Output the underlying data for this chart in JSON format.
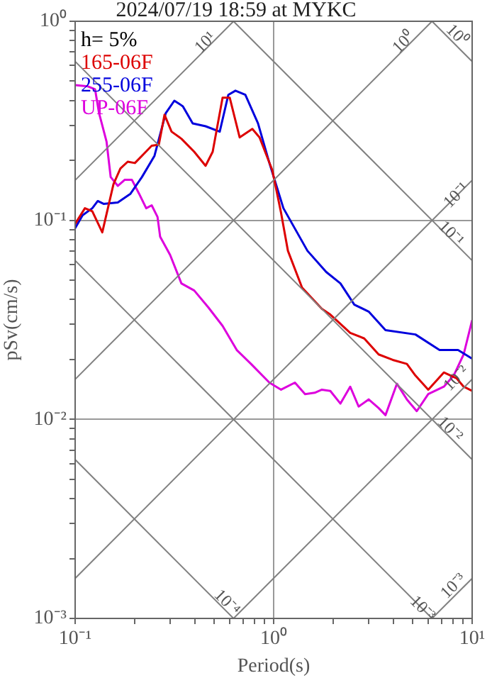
{
  "chart_data": {
    "type": "line",
    "title": "2024/07/19 18:59 at MYKC",
    "xlabel": "Period(s)",
    "ylabel": "pSv(cm/s)",
    "log": "xy",
    "grid": true,
    "legend": "top left",
    "xlim": [
      0.1,
      10
    ],
    "ylim": [
      0.001,
      1
    ],
    "xticks": [
      {
        "value": 0.1,
        "label": "10⁻¹"
      },
      {
        "value": 0.2,
        "label": null
      },
      {
        "value": 0.3,
        "label": null
      },
      {
        "value": 0.4,
        "label": null
      },
      {
        "value": 0.5,
        "label": null
      },
      {
        "value": 0.6,
        "label": null
      },
      {
        "value": 0.7,
        "label": null
      },
      {
        "value": 0.8,
        "label": null
      },
      {
        "value": 0.9,
        "label": null
      },
      {
        "value": 1,
        "label": "10⁰"
      },
      {
        "value": 2,
        "label": null
      },
      {
        "value": 3,
        "label": null
      },
      {
        "value": 4,
        "label": null
      },
      {
        "value": 5,
        "label": null
      },
      {
        "value": 6,
        "label": null
      },
      {
        "value": 7,
        "label": null
      },
      {
        "value": 8,
        "label": null
      },
      {
        "value": 9,
        "label": null
      },
      {
        "value": 10,
        "label": "10¹"
      }
    ],
    "yticks": [
      {
        "value": 0.001,
        "label": "10⁻³"
      },
      {
        "value": 0.002,
        "label": null
      },
      {
        "value": 0.003,
        "label": null
      },
      {
        "value": 0.004,
        "label": null
      },
      {
        "value": 0.005,
        "label": null
      },
      {
        "value": 0.006,
        "label": null
      },
      {
        "value": 0.007,
        "label": null
      },
      {
        "value": 0.008,
        "label": null
      },
      {
        "value": 0.009,
        "label": null
      },
      {
        "value": 0.01,
        "label": "10⁻²"
      },
      {
        "value": 0.02,
        "label": null
      },
      {
        "value": 0.03,
        "label": null
      },
      {
        "value": 0.04,
        "label": null
      },
      {
        "value": 0.05,
        "label": null
      },
      {
        "value": 0.06,
        "label": null
      },
      {
        "value": 0.07,
        "label": null
      },
      {
        "value": 0.08,
        "label": null
      },
      {
        "value": 0.09,
        "label": null
      },
      {
        "value": 0.1,
        "label": "10⁻¹"
      },
      {
        "value": 0.2,
        "label": null
      },
      {
        "value": 0.3,
        "label": null
      },
      {
        "value": 0.4,
        "label": null
      },
      {
        "value": 0.5,
        "label": null
      },
      {
        "value": 0.6,
        "label": null
      },
      {
        "value": 0.7,
        "label": null
      },
      {
        "value": 0.8,
        "label": null
      },
      {
        "value": 0.9,
        "label": null
      },
      {
        "value": 1,
        "label": "10⁰"
      }
    ],
    "series": [
      {
        "type": "line",
        "color": "#808080",
        "x": [
          0.1,
          0.628
        ],
        "values": [
          0.159,
          1
        ]
      },
      {
        "type": "line",
        "color": "#808080",
        "x": [
          0.1,
          6.28
        ],
        "values": [
          0.0159,
          1
        ]
      },
      {
        "type": "line",
        "color": "#808080",
        "x": [
          0.1,
          10
        ],
        "values": [
          0.00159,
          0.159
        ]
      },
      {
        "type": "line",
        "color": "#808080",
        "x": [
          0.628,
          10
        ],
        "values": [
          0.001,
          0.0159
        ]
      },
      {
        "type": "line",
        "color": "#808080",
        "x": [
          6.28,
          10
        ],
        "values": [
          0.001,
          0.00159
        ]
      },
      {
        "type": "line",
        "color": "#808080",
        "x": [
          6.28,
          10
        ],
        "values": [
          1,
          0.628
        ]
      },
      {
        "type": "line",
        "color": "#808080",
        "x": [
          0.628,
          10
        ],
        "values": [
          1,
          0.0628
        ]
      },
      {
        "type": "line",
        "color": "#808080",
        "x": [
          0.1,
          10
        ],
        "values": [
          0.628,
          0.00628
        ]
      },
      {
        "type": "line",
        "color": "#808080",
        "x": [
          0.1,
          6.28
        ],
        "values": [
          0.0628,
          0.001
        ]
      },
      {
        "type": "line",
        "color": "#808080",
        "x": [
          0.1,
          0.628
        ],
        "values": [
          0.00628,
          0.001
        ]
      },
      {
        "type": "line",
        "name": "165-06F",
        "color": "#dd0000",
        "x": [
          0.1,
          0.112,
          0.122,
          0.137,
          0.156,
          0.169,
          0.184,
          0.2,
          0.224,
          0.243,
          0.264,
          0.282,
          0.306,
          0.343,
          0.398,
          0.454,
          0.493,
          0.553,
          0.601,
          0.674,
          0.781,
          0.849,
          0.984,
          1.09,
          1.18,
          1.39,
          1.75,
          1.93,
          2.43,
          2.86,
          3.38,
          3.98,
          4.69,
          5.18,
          6.01,
          7.2,
          8.34,
          9.06,
          10
        ],
        "values": [
          0.096,
          0.115,
          0.111,
          0.087,
          0.152,
          0.182,
          0.197,
          0.194,
          0.218,
          0.237,
          0.24,
          0.339,
          0.279,
          0.257,
          0.221,
          0.188,
          0.221,
          0.413,
          0.413,
          0.261,
          0.288,
          0.261,
          0.179,
          0.109,
          0.0703,
          0.0459,
          0.0359,
          0.0336,
          0.0272,
          0.0255,
          0.0212,
          0.0199,
          0.019,
          0.0166,
          0.0141,
          0.0172,
          0.0161,
          0.0146,
          0.0139
        ]
      },
      {
        "type": "line",
        "name": "255-06F",
        "color": "#0000dd",
        "x": [
          0.1,
          0.109,
          0.122,
          0.13,
          0.139,
          0.164,
          0.19,
          0.217,
          0.251,
          0.286,
          0.316,
          0.349,
          0.391,
          0.454,
          0.535,
          0.591,
          0.642,
          0.72,
          0.834,
          0.952,
          1.12,
          1.48,
          1.84,
          2.17,
          2.55,
          3.01,
          3.66,
          5.18,
          6.85,
          8.49,
          10
        ],
        "values": [
          0.0914,
          0.106,
          0.115,
          0.125,
          0.121,
          0.123,
          0.136,
          0.165,
          0.211,
          0.345,
          0.399,
          0.374,
          0.307,
          0.297,
          0.279,
          0.427,
          0.448,
          0.427,
          0.307,
          0.194,
          0.115,
          0.0703,
          0.055,
          0.0482,
          0.0377,
          0.0348,
          0.0281,
          0.0267,
          0.0223,
          0.0223,
          0.0202
        ]
      },
      {
        "type": "line",
        "name": "UP-06F",
        "color": "#dd00dd",
        "x": [
          0.1,
          0.116,
          0.126,
          0.132,
          0.144,
          0.151,
          0.164,
          0.178,
          0.193,
          0.21,
          0.228,
          0.243,
          0.26,
          0.268,
          0.301,
          0.343,
          0.398,
          0.469,
          0.553,
          0.652,
          0.769,
          0.952,
          1.09,
          1.28,
          1.44,
          1.61,
          1.75,
          1.93,
          2.17,
          2.43,
          2.68,
          3.01,
          3.38,
          3.66,
          4.18,
          4.69,
          5.26,
          6.01,
          7.2,
          8.07,
          9.06,
          10
        ],
        "values": [
          0.478,
          0.471,
          0.455,
          0.345,
          0.248,
          0.165,
          0.149,
          0.16,
          0.16,
          0.136,
          0.115,
          0.119,
          0.104,
          0.0828,
          0.067,
          0.0482,
          0.0444,
          0.0365,
          0.0295,
          0.0223,
          0.019,
          0.0153,
          0.0141,
          0.0153,
          0.0134,
          0.0136,
          0.0141,
          0.0139,
          0.012,
          0.0146,
          0.0116,
          0.0126,
          0.0114,
          0.0105,
          0.0151,
          0.0126,
          0.011,
          0.0134,
          0.0146,
          0.0166,
          0.0212,
          0.0315
        ]
      }
    ],
    "annotations": [
      "h= 5%",
      {
        "text": "10¹",
        "x": 0.454,
        "y": 0.78
      },
      {
        "text": "10⁰",
        "x": 4.52,
        "y": 0.78
      },
      {
        "text": "10⁰",
        "x": 8.34,
        "y": 0.85
      },
      {
        "text": "10⁻¹",
        "x": 8.34,
        "y": 0.133
      },
      {
        "text": "10⁻¹",
        "x": 7.8,
        "y": 0.0855
      },
      {
        "text": "10⁻²",
        "x": 8.34,
        "y": 0.016
      },
      {
        "text": "10⁻²",
        "x": 7.7,
        "y": 0.0089
      },
      {
        "text": "10⁻⁴",
        "x": 0.58,
        "y": 0.0012
      },
      {
        "text": "10⁻³",
        "x": 5.6,
        "y": 0.00112
      },
      {
        "text": "10⁻³",
        "x": 8.07,
        "y": 0.00145
      }
    ]
  }
}
